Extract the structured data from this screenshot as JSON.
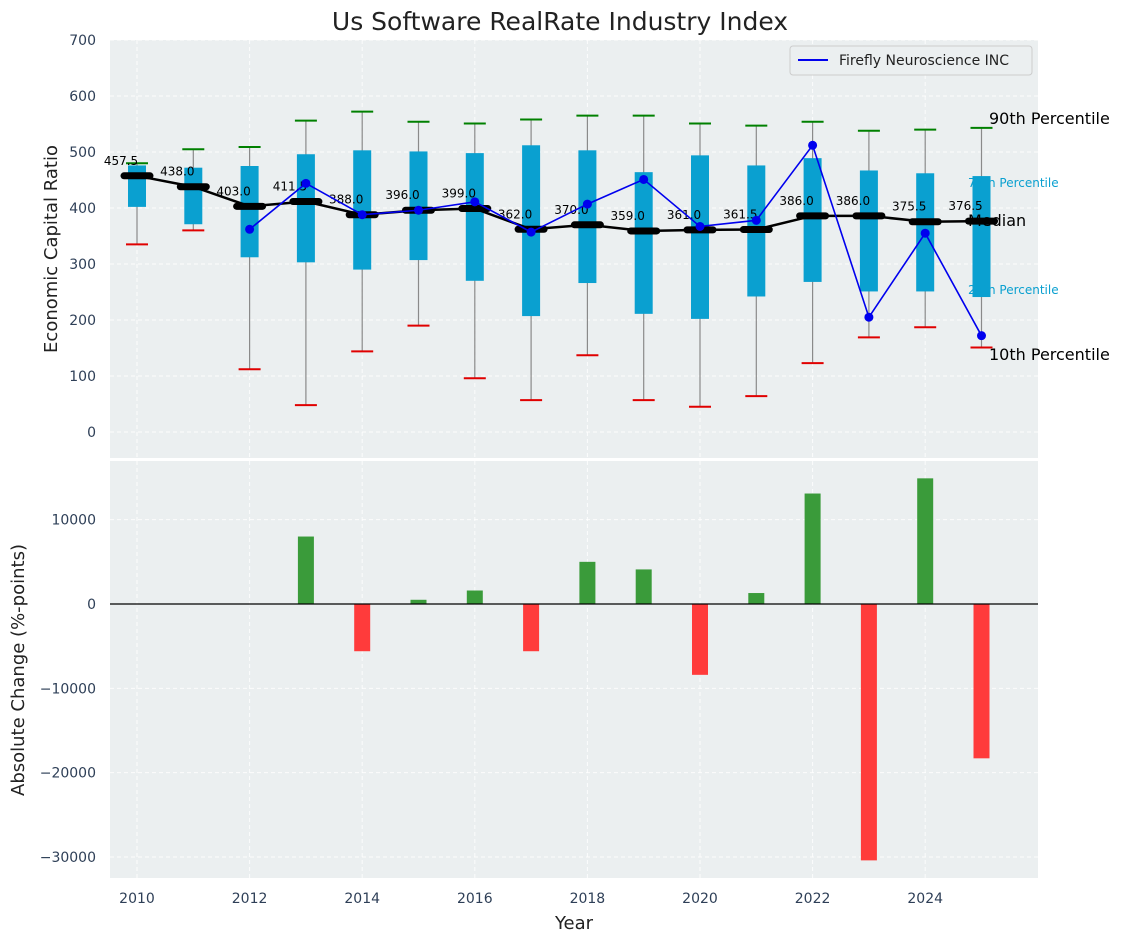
{
  "chart_data": [
    {
      "type": "box",
      "title": "Us Software RealRate Industry Index",
      "ylabel": "Economic Capital Ratio",
      "ylim": [
        -50,
        700
      ],
      "yticks": [
        0,
        100,
        200,
        300,
        400,
        500,
        600,
        700
      ],
      "x": [
        2010,
        2011,
        2012,
        2013,
        2014,
        2015,
        2016,
        2017,
        2018,
        2019,
        2020,
        2021,
        2022,
        2023,
        2024,
        2025
      ],
      "p10": [
        335,
        360,
        112,
        48,
        144,
        190,
        96,
        57,
        137,
        57,
        45,
        64,
        123,
        169,
        187,
        151
      ],
      "p25": [
        402,
        371,
        312,
        303,
        290,
        307,
        270,
        207,
        266,
        211,
        202,
        242,
        268,
        251,
        251,
        241
      ],
      "median": [
        457.5,
        438.0,
        403.0,
        411.5,
        388.0,
        396.0,
        399.0,
        362.0,
        370.0,
        359.0,
        361.0,
        361.5,
        386.0,
        386.0,
        375.5,
        376.5
      ],
      "p75": [
        476,
        472,
        475,
        496,
        503,
        501,
        498,
        512,
        503,
        464,
        494,
        476,
        489,
        467,
        462,
        457
      ],
      "p90": [
        480,
        505,
        509,
        556,
        572,
        554,
        551,
        558,
        565,
        565,
        551,
        547,
        554,
        538,
        540,
        543
      ],
      "median_labels": [
        "457.5",
        "438.0",
        "403.0",
        "411.5",
        "388.0",
        "396.0",
        "399.0",
        "362.0",
        "370.0",
        "359.0",
        "361.0",
        "361.5",
        "386.0",
        "386.0",
        "375.5",
        "376.5"
      ],
      "company": {
        "name": "Firefly Neuroscience INC",
        "x": [
          2012,
          2013,
          2014,
          2015,
          2016,
          2017,
          2018,
          2019,
          2020,
          2021,
          2022,
          2023,
          2024,
          2025
        ],
        "values": [
          362,
          444,
          388,
          396,
          411,
          357,
          407,
          451,
          367,
          378,
          512,
          205,
          355,
          172
        ]
      },
      "annotations": {
        "p90": "90th Percentile",
        "p75": "75th Percentile",
        "median": "Median",
        "p25": "25th Percentile",
        "p10": "10th Percentile"
      },
      "legend_position": "top-right",
      "grid": true
    },
    {
      "type": "bar",
      "ylabel": "Absolute Change (%-points)",
      "xlabel": "Year",
      "ylim": [
        -32500,
        17500
      ],
      "yticks": [
        -30000,
        -20000,
        -10000,
        0,
        10000
      ],
      "ytick_labels": [
        "−30000",
        "−20000",
        "−10000",
        "0",
        "10000"
      ],
      "xticks": [
        2010,
        2012,
        2014,
        2016,
        2018,
        2020,
        2022,
        2024
      ],
      "x": [
        2013,
        2014,
        2015,
        2016,
        2017,
        2018,
        2019,
        2020,
        2021,
        2022,
        2023,
        2024,
        2025
      ],
      "values": [
        8000,
        -5600,
        500,
        1600,
        -5600,
        5000,
        4100,
        -8400,
        1300,
        13100,
        -30400,
        14900,
        -18300
      ],
      "positive_color": "#3a9b3a",
      "negative_color": "#ff3b3b",
      "grid": true
    }
  ],
  "colors": {
    "box_fill": "#0aa0d0",
    "whisker": "#8a8a8a",
    "p10_cap": "#e00000",
    "p90_cap": "#008000",
    "median_line": "#000000",
    "company_line": "#0000ee",
    "panel_bg": "#ebeff0",
    "annot_quartile": "#0aa0d0"
  }
}
